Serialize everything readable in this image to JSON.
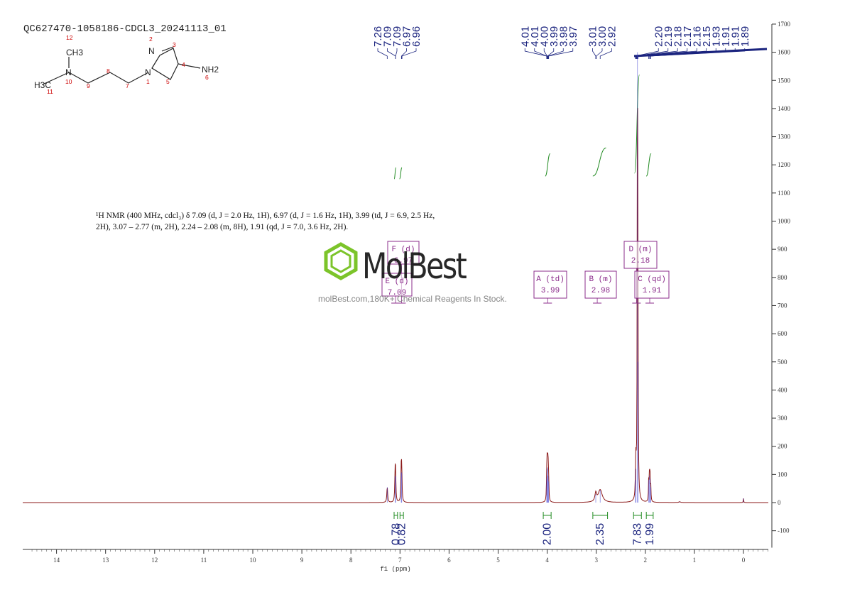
{
  "header": {
    "sample_id": "QC627470-1058186-CDCL3_20241113_01"
  },
  "report": {
    "line1": "¹H NMR (400 MHz, cdcl₃) δ 7.09 (d, J = 2.0 Hz, 1H), 6.97 (d, J = 1.6 Hz, 1H), 3.99 (td, J = 6.9, 2.5 Hz,",
    "line2": "2H), 3.07 – 2.77 (m, 2H), 2.24 – 2.08 (m, 8H), 1.91 (qd, J = 7.0, 3.6 Hz, 2H)."
  },
  "watermark": {
    "brand": "MolBest",
    "tagline": "molBest.com,180K+ Chemical Reagents In Stock."
  },
  "structure": {
    "ch3_top": "CH3",
    "ch3_left": "H3C",
    "nh2": "NH2",
    "n10": "N",
    "n1": "N",
    "n2": "N",
    "atom_numbers": [
      "12",
      "10",
      "9",
      "8",
      "7",
      "1",
      "2",
      "3",
      "4",
      "5",
      "6",
      "11"
    ]
  },
  "colors": {
    "spectrum": "#8b1a1a",
    "integral": "#228b22",
    "peak_label": "#1a237e",
    "annotation": "#8b2c8b",
    "axis": "#333333"
  },
  "chart_data": {
    "type": "line",
    "xlabel": "f1 (ppm)",
    "ylabel": "",
    "xlim": [
      14.5,
      -0.5
    ],
    "ylim": [
      -160,
      1700
    ],
    "x_ticks": [
      14,
      13,
      12,
      11,
      10,
      9,
      8,
      7,
      6,
      5,
      4,
      3,
      2,
      1,
      0
    ],
    "y_ticks": [
      -100,
      0,
      100,
      200,
      300,
      400,
      500,
      600,
      700,
      800,
      900,
      1000,
      1100,
      1200,
      1300,
      1400,
      1500,
      1600,
      1700
    ],
    "peak_groups": [
      {
        "labels": [
          "7.26",
          "7.09",
          "7.09",
          "6.97",
          "6.96"
        ],
        "positions": [
          7.26,
          7.09,
          7.09,
          6.97,
          6.96
        ]
      },
      {
        "labels": [
          "4.01",
          "4.01",
          "4.00",
          "3.99",
          "3.98",
          "3.97"
        ],
        "positions": [
          4.01,
          4.01,
          4.0,
          3.99,
          3.98,
          3.97
        ]
      },
      {
        "labels": [
          "3.01",
          "3.00",
          "2.92"
        ],
        "positions": [
          3.01,
          3.0,
          2.92
        ]
      },
      {
        "labels": [
          "2.20",
          "2.19",
          "2.18",
          "2.17",
          "2.16",
          "2.15",
          "1.93",
          "1.91",
          "1.91",
          "1.89"
        ],
        "positions": [
          2.2,
          2.19,
          2.18,
          2.17,
          2.16,
          2.15,
          1.93,
          1.91,
          1.91,
          1.89
        ]
      }
    ],
    "peaks": [
      {
        "ppm": 7.26,
        "height": 55,
        "width": 0.01
      },
      {
        "ppm": 7.1,
        "height": 95,
        "width": 0.008
      },
      {
        "ppm": 7.09,
        "height": 92,
        "width": 0.008
      },
      {
        "ppm": 6.975,
        "height": 108,
        "width": 0.008
      },
      {
        "ppm": 6.965,
        "height": 105,
        "width": 0.008
      },
      {
        "ppm": 4.01,
        "height": 85,
        "width": 0.006
      },
      {
        "ppm": 4.0,
        "height": 120,
        "width": 0.006
      },
      {
        "ppm": 3.99,
        "height": 125,
        "width": 0.006
      },
      {
        "ppm": 3.98,
        "height": 95,
        "width": 0.006
      },
      {
        "ppm": 3.97,
        "height": 75,
        "width": 0.006
      },
      {
        "ppm": 3.01,
        "height": 30,
        "width": 0.02
      },
      {
        "ppm": 2.92,
        "height": 45,
        "width": 0.05
      },
      {
        "ppm": 2.2,
        "height": 80,
        "width": 0.006
      },
      {
        "ppm": 2.19,
        "height": 120,
        "width": 0.006
      },
      {
        "ppm": 2.16,
        "height": 1600,
        "width": 0.006
      },
      {
        "ppm": 2.15,
        "height": 500,
        "width": 0.006
      },
      {
        "ppm": 1.93,
        "height": 80,
        "width": 0.006
      },
      {
        "ppm": 1.915,
        "height": 95,
        "width": 0.006
      },
      {
        "ppm": 1.905,
        "height": 85,
        "width": 0.006
      },
      {
        "ppm": 1.89,
        "height": 55,
        "width": 0.006
      },
      {
        "ppm": 1.3,
        "height": 3,
        "width": 0.02
      },
      {
        "ppm": 0.0,
        "height": 15,
        "width": 0.005
      }
    ],
    "integrals": [
      {
        "value": "0.78",
        "from": 7.12,
        "to": 7.05
      },
      {
        "value": "0.82",
        "from": 7.0,
        "to": 6.93
      },
      {
        "value": "2.00",
        "from": 4.08,
        "to": 3.92
      },
      {
        "value": "2.35",
        "from": 3.07,
        "to": 2.77
      },
      {
        "value": "7.83",
        "from": 2.24,
        "to": 2.08
      },
      {
        "value": "1.99",
        "from": 1.98,
        "to": 1.84
      }
    ],
    "integral_curves": [
      {
        "from": 7.12,
        "to": 7.08,
        "y0": 1150,
        "y1": 1190
      },
      {
        "from": 7.01,
        "to": 6.96,
        "y0": 1150,
        "y1": 1190
      },
      {
        "from": 4.04,
        "to": 3.94,
        "y0": 1160,
        "y1": 1240
      },
      {
        "from": 3.07,
        "to": 2.8,
        "y0": 1160,
        "y1": 1260
      },
      {
        "from": 2.22,
        "to": 2.12,
        "y0": 1170,
        "y1": 1520
      },
      {
        "from": 1.98,
        "to": 1.88,
        "y0": 1160,
        "y1": 1240
      }
    ],
    "multiplets": [
      {
        "label": "F (d)",
        "shift": "6.97",
        "ppm": 6.97
      },
      {
        "label": "E (d)",
        "shift": "7.09",
        "ppm": 7.09
      },
      {
        "label": "A (td)",
        "shift": "3.99",
        "ppm": 3.99
      },
      {
        "label": "B (m)",
        "shift": "2.98",
        "ppm": 2.98
      },
      {
        "label": "D (m)",
        "shift": "2.18",
        "ppm": 2.18
      },
      {
        "label": "C (qd)",
        "shift": "1.91",
        "ppm": 1.91
      }
    ]
  }
}
